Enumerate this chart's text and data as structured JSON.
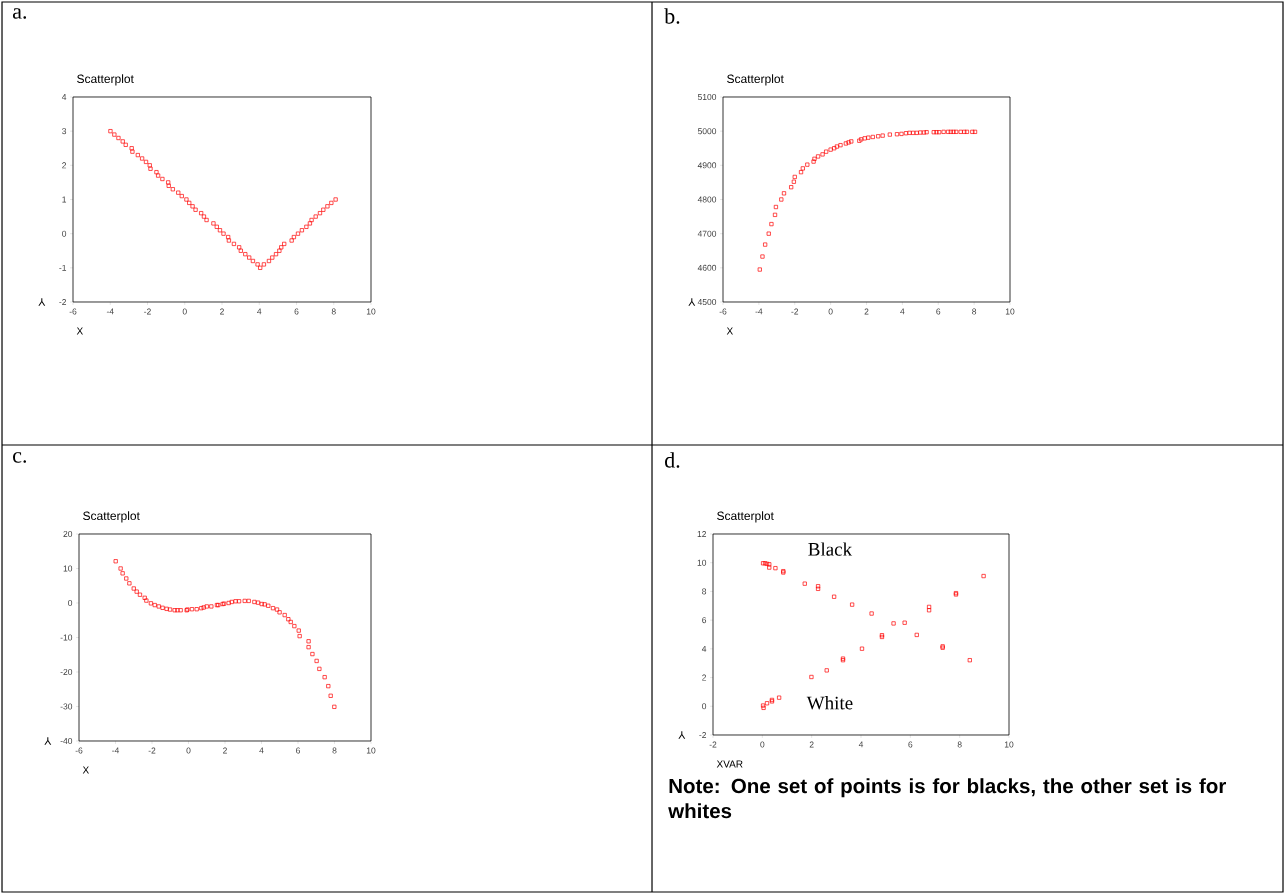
{
  "chart_data": [
    {
      "type": "scatter",
      "title": "Scatterplot",
      "xlabel": "X",
      "ylabel": "Y",
      "xlim": [
        -6,
        10
      ],
      "ylim": [
        -2,
        4
      ],
      "xticks": [
        -6,
        -4,
        -2,
        0,
        2,
        4,
        6,
        8,
        10
      ],
      "yticks": [
        -2,
        -1,
        0,
        1,
        2,
        3,
        4
      ],
      "marker": "square",
      "annotations": [
        "a."
      ],
      "series": [
        {
          "color": "#ff0000",
          "x": [
            -3.99,
            -3.78,
            -3.56,
            -3.33,
            -3.17,
            -2.85,
            -2.81,
            -2.52,
            -2.29,
            -2.08,
            -1.88,
            -1.84,
            -1.52,
            -1.43,
            -1.2,
            -0.89,
            -0.86,
            -0.64,
            -0.35,
            -0.16,
            0.09,
            0.24,
            0.42,
            0.58,
            0.88,
            1.03,
            1.17,
            1.54,
            1.72,
            1.89,
            2.08,
            2.33,
            2.37,
            2.64,
            2.92,
            3.01,
            3.25,
            3.46,
            3.66,
            3.91,
            4.05,
            4.25,
            4.52,
            4.7,
            4.9,
            5.08,
            5.18,
            5.34,
            5.74,
            5.86,
            6.08,
            6.29,
            6.53,
            6.72,
            6.81,
            7.03,
            7.26,
            7.44,
            7.66,
            7.87,
            8.1
          ],
          "values": [
            3.0,
            2.9,
            2.8,
            2.7,
            2.6,
            2.5,
            2.4,
            2.3,
            2.2,
            2.1,
            2.0,
            1.9,
            1.8,
            1.7,
            1.6,
            1.5,
            1.4,
            1.3,
            1.2,
            1.1,
            1.0,
            0.9,
            0.8,
            0.7,
            0.6,
            0.5,
            0.4,
            0.3,
            0.2,
            0.1,
            0.0,
            -0.1,
            -0.2,
            -0.3,
            -0.4,
            -0.5,
            -0.6,
            -0.7,
            -0.8,
            -0.9,
            -1.0,
            -0.9,
            -0.8,
            -0.7,
            -0.6,
            -0.5,
            -0.4,
            -0.3,
            -0.2,
            -0.1,
            0.0,
            0.1,
            0.2,
            0.3,
            0.4,
            0.5,
            0.6,
            0.7,
            0.8,
            0.9,
            1.0
          ]
        }
      ]
    },
    {
      "type": "scatter",
      "title": "Scatterplot",
      "xlabel": "X",
      "ylabel": "Y",
      "xlim": [
        -6,
        10
      ],
      "ylim": [
        4500,
        5100
      ],
      "xticks": [
        -6,
        -4,
        -2,
        0,
        2,
        4,
        6,
        8,
        10
      ],
      "yticks": [
        4500,
        4600,
        4700,
        4800,
        4900,
        5000,
        5100
      ],
      "marker": "square",
      "annotations": [
        "b."
      ],
      "series": [
        {
          "color": "#ff0000",
          "x": [
            -3.95,
            -3.8,
            -3.65,
            -3.45,
            -3.3,
            -3.1,
            -3.05,
            -2.75,
            -2.6,
            -2.2,
            -2.05,
            -2.0,
            -1.65,
            -1.55,
            -1.3,
            -0.95,
            -0.9,
            -0.7,
            -0.45,
            -0.25,
            0,
            0.2,
            0.35,
            0.55,
            0.85,
            1.0,
            1.15,
            1.6,
            1.7,
            1.9,
            2.1,
            2.35,
            2.65,
            2.9,
            3.3,
            3.7,
            3.95,
            4.2,
            4.4,
            4.6,
            4.8,
            5.0,
            5.2,
            5.35,
            5.75,
            5.9,
            6.05,
            6.3,
            6.55,
            6.7,
            6.85,
            7.0,
            7.25,
            7.45,
            7.6,
            7.9,
            8.05
          ],
          "values": [
            4595,
            4633,
            4668,
            4700,
            4728,
            4755,
            4778,
            4800,
            4818,
            4836,
            4852,
            4866,
            4880,
            4891,
            4902,
            4911,
            4919,
            4926,
            4932,
            4940,
            4946,
            4950,
            4955,
            4959,
            4964,
            4967,
            4970,
            4972,
            4976,
            4979,
            4981,
            4983,
            4985,
            4987,
            4990,
            4991,
            4992,
            4994,
            4995,
            4995,
            4995,
            4996,
            4996,
            4997,
            4997,
            4997,
            4997,
            4998,
            4998,
            4998,
            4998,
            4998,
            4998,
            4998,
            4998,
            4998,
            4998
          ]
        }
      ]
    },
    {
      "type": "scatter",
      "title": "Scatterplot",
      "xlabel": "X",
      "ylabel": "Y",
      "xlim": [
        -6,
        10
      ],
      "ylim": [
        -40,
        20
      ],
      "xticks": [
        -6,
        -4,
        -2,
        0,
        2,
        4,
        6,
        8,
        10
      ],
      "yticks": [
        -40,
        -30,
        -20,
        -10,
        0,
        10,
        20
      ],
      "marker": "square",
      "annotations": [
        "c."
      ],
      "series": [
        {
          "color": "#ff0000",
          "x": [
            -3.99,
            -3.72,
            -3.61,
            -3.41,
            -3.24,
            -3.0,
            -2.84,
            -2.66,
            -2.4,
            -2.31,
            -2.06,
            -1.85,
            -1.63,
            -1.42,
            -1.2,
            -1.01,
            -0.76,
            -0.61,
            -0.43,
            -0.1,
            -0.06,
            0.19,
            0.45,
            0.7,
            0.83,
            1.0,
            1.25,
            1.56,
            1.63,
            1.87,
            1.95,
            2.2,
            2.37,
            2.58,
            2.77,
            3.08,
            3.3,
            3.61,
            3.81,
            4.01,
            4.17,
            4.37,
            4.63,
            4.85,
            4.99,
            5.27,
            5.47,
            5.6,
            5.8,
            6.04,
            6.09,
            6.58,
            6.58,
            6.79,
            7.02,
            7.17,
            7.46,
            7.66,
            7.79,
            7.99
          ],
          "values": [
            12.1,
            10.0,
            8.6,
            7.1,
            5.7,
            4.2,
            3.3,
            2.4,
            1.5,
            0.7,
            -0.1,
            -0.6,
            -1.0,
            -1.4,
            -1.7,
            -1.9,
            -2.1,
            -2.1,
            -2.1,
            -2.1,
            -1.9,
            -1.8,
            -1.8,
            -1.5,
            -1.3,
            -1.0,
            -1.0,
            -0.6,
            -0.6,
            -0.3,
            -0.2,
            0.0,
            0.3,
            0.5,
            0.5,
            0.6,
            0.6,
            0.3,
            0.1,
            -0.3,
            -0.4,
            -0.8,
            -1.5,
            -1.9,
            -2.7,
            -3.5,
            -4.7,
            -5.5,
            -6.7,
            -8.0,
            -9.6,
            -11.1,
            -12.8,
            -14.8,
            -16.8,
            -19.1,
            -21.5,
            -24.1,
            -26.9,
            -30.1
          ]
        }
      ]
    },
    {
      "type": "scatter",
      "title": "Scatterplot",
      "xlabel": "XVAR",
      "ylabel": "Y",
      "xlim": [
        -2,
        10
      ],
      "ylim": [
        -2,
        12
      ],
      "xticks": [
        -2,
        0,
        2,
        4,
        6,
        8,
        10
      ],
      "yticks": [
        -2,
        0,
        2,
        4,
        6,
        8,
        10,
        12
      ],
      "marker": "square",
      "annotations": [
        "d.",
        "Black",
        "White",
        "Note: One set of points is for blacks, the other set is for whites"
      ],
      "series": [
        {
          "color": "#ff0000",
          "x": [
            0.03,
            0.11,
            0.19,
            0.28,
            0.28,
            0.53,
            0.85,
            0.85,
            1.72,
            2.26,
            2.26,
            2.91,
            3.64,
            4.43,
            5.32,
            6.26,
            7.31,
            7.31,
            8.41
          ],
          "values": [
            9.96,
            9.96,
            9.92,
            9.89,
            9.66,
            9.62,
            9.41,
            9.32,
            8.54,
            8.36,
            8.18,
            7.63,
            7.08,
            6.46,
            5.77,
            4.97,
            4.17,
            4.08,
            3.21
          ]
        },
        {
          "color": "#ff0000",
          "x": [
            0.03,
            0.05,
            0.19,
            0.39,
            0.39,
            0.68,
            1.99,
            2.61,
            3.27,
            3.27,
            4.04,
            4.85,
            4.85,
            5.77,
            6.76,
            6.76,
            7.85,
            7.85,
            8.97
          ],
          "values": [
            0.05,
            -0.11,
            0.21,
            0.34,
            0.44,
            0.6,
            2.04,
            2.5,
            3.21,
            3.32,
            4.01,
            4.83,
            4.95,
            5.82,
            6.69,
            6.92,
            7.79,
            7.88,
            9.07
          ]
        }
      ]
    }
  ]
}
